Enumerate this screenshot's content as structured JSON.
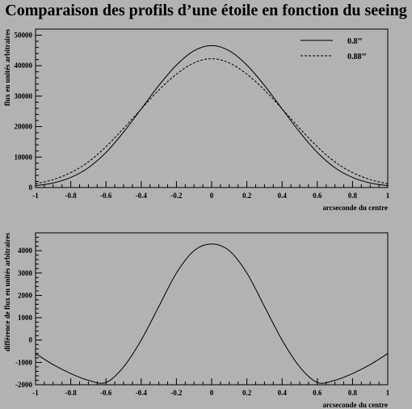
{
  "title": "Comparaison des profils d’une étoile en fonction du seeing",
  "chart_data": [
    {
      "type": "line",
      "xlabel": "arcseconde du centre",
      "ylabel": "flux en unités arbitraires",
      "xlim": [
        -1,
        1
      ],
      "ylim": [
        0,
        52000
      ],
      "x_ticks": [
        "-1",
        "-0.8",
        "-0.6",
        "-0.4",
        "-0.2",
        "0",
        "0.2",
        "0.4",
        "0.6",
        "0.8",
        "1"
      ],
      "y_ticks": [
        "0",
        "10000",
        "20000",
        "30000",
        "40000",
        "50000"
      ],
      "grid": false,
      "legend_position": "top-right",
      "series": [
        {
          "name": "0.8’’",
          "style": "solid",
          "x": [
            -1,
            -0.9,
            -0.8,
            -0.7,
            -0.6,
            -0.5,
            -0.4,
            -0.3,
            -0.2,
            -0.1,
            0,
            0.1,
            0.2,
            0.3,
            0.4,
            0.5,
            0.6,
            0.7,
            0.8,
            0.9,
            1
          ],
          "values": [
            600,
            1500,
            3300,
            6500,
            11500,
            18200,
            25800,
            33500,
            40200,
            44900,
            46600,
            44900,
            40200,
            33500,
            25800,
            18200,
            11500,
            6500,
            3300,
            1500,
            600
          ]
        },
        {
          "name": "0.88’’",
          "style": "dashed",
          "x": [
            -1,
            -0.9,
            -0.8,
            -0.7,
            -0.6,
            -0.5,
            -0.4,
            -0.3,
            -0.2,
            -0.1,
            0,
            0.1,
            0.2,
            0.3,
            0.4,
            0.5,
            0.6,
            0.7,
            0.8,
            0.9,
            1
          ],
          "values": [
            1200,
            2600,
            4900,
            8400,
            13400,
            19400,
            25800,
            32000,
            37200,
            40900,
            42300,
            40900,
            37200,
            32000,
            25800,
            19400,
            13400,
            8400,
            4900,
            2600,
            1200
          ]
        }
      ]
    },
    {
      "type": "line",
      "xlabel": "arcseconde du centre",
      "ylabel": "différence de flux en unités arbitraires",
      "xlim": [
        -1,
        1
      ],
      "ylim": [
        -2000,
        4800
      ],
      "x_ticks": [
        "-1",
        "-0.8",
        "-0.6",
        "-0.4",
        "-0.2",
        "0",
        "0.2",
        "0.4",
        "0.6",
        "0.8",
        "1"
      ],
      "y_ticks": [
        "-2000",
        "-1000",
        "0",
        "1000",
        "2000",
        "3000",
        "4000"
      ],
      "grid": false,
      "series": [
        {
          "style": "solid",
          "x": [
            -1,
            -0.9,
            -0.8,
            -0.7,
            -0.6,
            -0.5,
            -0.4,
            -0.3,
            -0.2,
            -0.1,
            0,
            0.1,
            0.2,
            0.3,
            0.4,
            0.5,
            0.6,
            0.7,
            0.8,
            0.9,
            1
          ],
          "values": [
            -600,
            -1100,
            -1500,
            -1800,
            -1900,
            -1200,
            0,
            1500,
            3000,
            4000,
            4300,
            4000,
            3000,
            1500,
            0,
            -1200,
            -1900,
            -1800,
            -1500,
            -1100,
            -600
          ]
        }
      ]
    }
  ]
}
